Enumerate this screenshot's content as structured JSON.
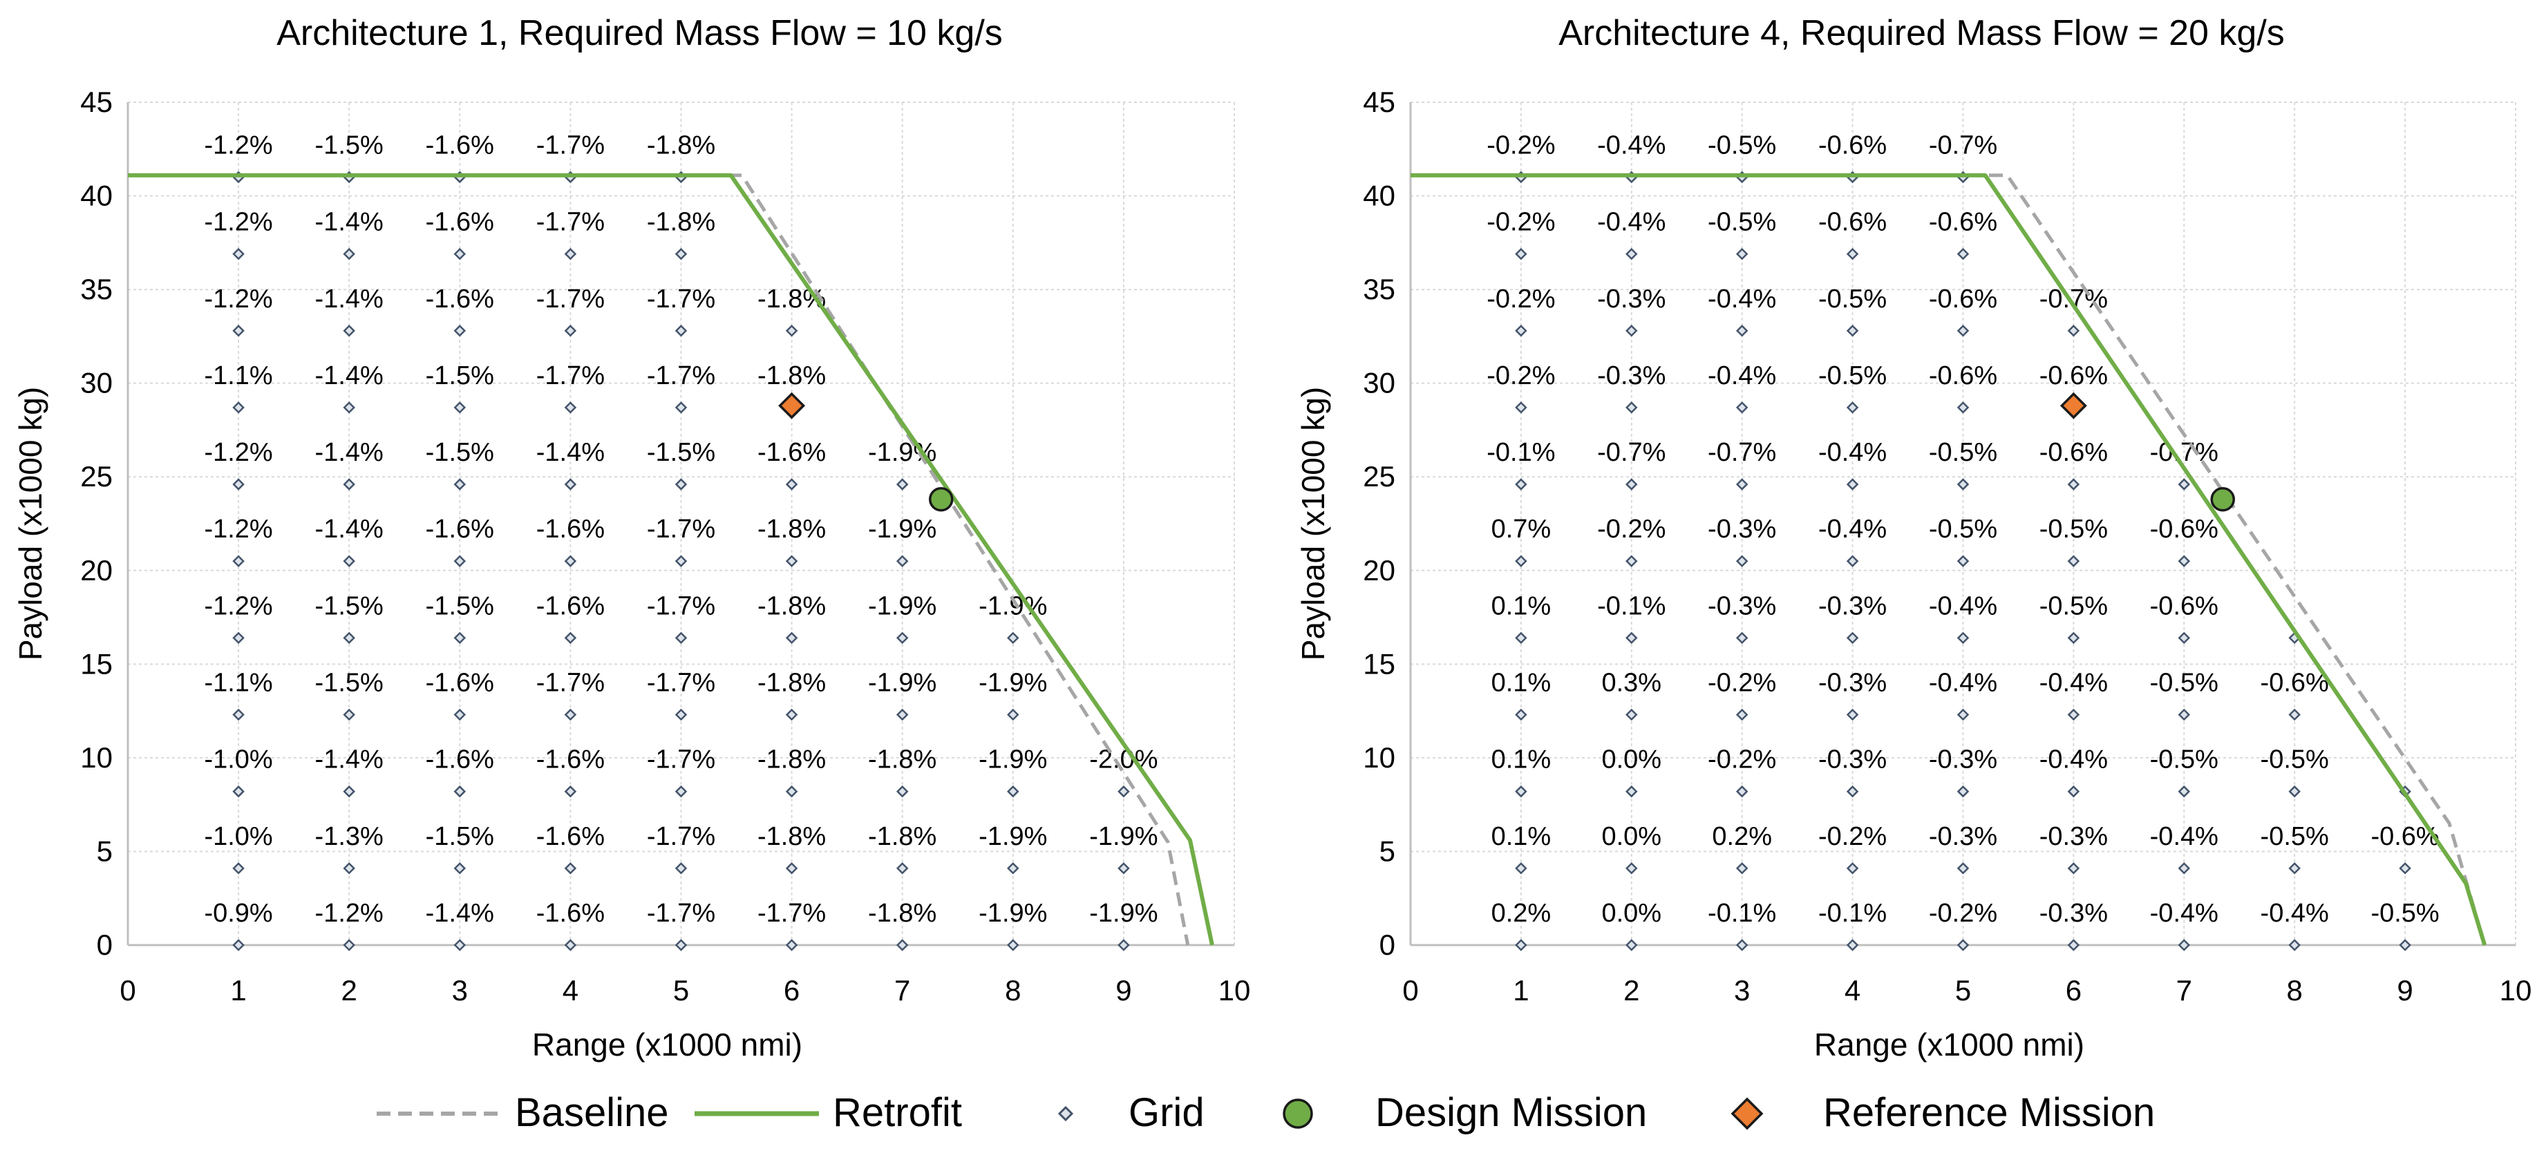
{
  "chart_data": [
    {
      "type": "scatter",
      "title": "Architecture 1, Required Mass Flow = 10 kg/s",
      "xlabel": "Range (x1000 nmi)",
      "ylabel": "Payload (x1000 kg)",
      "xlim": [
        0,
        10
      ],
      "ylim": [
        0,
        45
      ],
      "xticks": [
        "0",
        "1",
        "2",
        "3",
        "4",
        "5",
        "6",
        "7",
        "8",
        "9",
        "10"
      ],
      "yticks": [
        "0",
        "5",
        "10",
        "15",
        "20",
        "25",
        "30",
        "35",
        "40",
        "45"
      ],
      "grid": true,
      "series": [
        {
          "name": "Baseline",
          "style": "dashed-line",
          "color": "#a6a6a6",
          "x": [
            0,
            5.55,
            9.4,
            9.58
          ],
          "y": [
            41.1,
            41.1,
            5.5,
            0
          ]
        },
        {
          "name": "Retrofit",
          "style": "line",
          "color": "#70ad47",
          "x": [
            0,
            5.45,
            9.6,
            9.8
          ],
          "y": [
            41.1,
            41.1,
            5.6,
            0
          ]
        },
        {
          "name": "Design Mission",
          "style": "circle",
          "color": "#70ad47",
          "x": [
            7.35
          ],
          "y": [
            23.8
          ]
        },
        {
          "name": "Reference Mission",
          "style": "diamond",
          "color": "#ed7d31",
          "x": [
            6.0
          ],
          "y": [
            28.8
          ]
        }
      ],
      "grid_points": [
        {
          "x": 1,
          "y": 0,
          "label": "-0.9%"
        },
        {
          "x": 2,
          "y": 0,
          "label": "-1.2%"
        },
        {
          "x": 3,
          "y": 0,
          "label": "-1.4%"
        },
        {
          "x": 4,
          "y": 0,
          "label": "-1.6%"
        },
        {
          "x": 5,
          "y": 0,
          "label": "-1.7%"
        },
        {
          "x": 6,
          "y": 0,
          "label": "-1.7%"
        },
        {
          "x": 7,
          "y": 0,
          "label": "-1.8%"
        },
        {
          "x": 8,
          "y": 0,
          "label": "-1.9%"
        },
        {
          "x": 9,
          "y": 0,
          "label": "-1.9%"
        },
        {
          "x": 1,
          "y": 4.1,
          "label": "-1.0%"
        },
        {
          "x": 2,
          "y": 4.1,
          "label": "-1.3%"
        },
        {
          "x": 3,
          "y": 4.1,
          "label": "-1.5%"
        },
        {
          "x": 4,
          "y": 4.1,
          "label": "-1.6%"
        },
        {
          "x": 5,
          "y": 4.1,
          "label": "-1.7%"
        },
        {
          "x": 6,
          "y": 4.1,
          "label": "-1.8%"
        },
        {
          "x": 7,
          "y": 4.1,
          "label": "-1.8%"
        },
        {
          "x": 8,
          "y": 4.1,
          "label": "-1.9%"
        },
        {
          "x": 9,
          "y": 4.1,
          "label": "-1.9%"
        },
        {
          "x": 1,
          "y": 8.2,
          "label": "-1.0%"
        },
        {
          "x": 2,
          "y": 8.2,
          "label": "-1.4%"
        },
        {
          "x": 3,
          "y": 8.2,
          "label": "-1.6%"
        },
        {
          "x": 4,
          "y": 8.2,
          "label": "-1.6%"
        },
        {
          "x": 5,
          "y": 8.2,
          "label": "-1.7%"
        },
        {
          "x": 6,
          "y": 8.2,
          "label": "-1.8%"
        },
        {
          "x": 7,
          "y": 8.2,
          "label": "-1.8%"
        },
        {
          "x": 8,
          "y": 8.2,
          "label": "-1.9%"
        },
        {
          "x": 9,
          "y": 8.2,
          "label": "-2.0%"
        },
        {
          "x": 1,
          "y": 12.3,
          "label": "-1.1%"
        },
        {
          "x": 2,
          "y": 12.3,
          "label": "-1.5%"
        },
        {
          "x": 3,
          "y": 12.3,
          "label": "-1.6%"
        },
        {
          "x": 4,
          "y": 12.3,
          "label": "-1.7%"
        },
        {
          "x": 5,
          "y": 12.3,
          "label": "-1.7%"
        },
        {
          "x": 6,
          "y": 12.3,
          "label": "-1.8%"
        },
        {
          "x": 7,
          "y": 12.3,
          "label": "-1.9%"
        },
        {
          "x": 8,
          "y": 12.3,
          "label": "-1.9%"
        },
        {
          "x": 1,
          "y": 16.4,
          "label": "-1.2%"
        },
        {
          "x": 2,
          "y": 16.4,
          "label": "-1.5%"
        },
        {
          "x": 3,
          "y": 16.4,
          "label": "-1.5%"
        },
        {
          "x": 4,
          "y": 16.4,
          "label": "-1.6%"
        },
        {
          "x": 5,
          "y": 16.4,
          "label": "-1.7%"
        },
        {
          "x": 6,
          "y": 16.4,
          "label": "-1.8%"
        },
        {
          "x": 7,
          "y": 16.4,
          "label": "-1.9%"
        },
        {
          "x": 8,
          "y": 16.4,
          "label": "-1.9%"
        },
        {
          "x": 1,
          "y": 20.5,
          "label": "-1.2%"
        },
        {
          "x": 2,
          "y": 20.5,
          "label": "-1.4%"
        },
        {
          "x": 3,
          "y": 20.5,
          "label": "-1.6%"
        },
        {
          "x": 4,
          "y": 20.5,
          "label": "-1.6%"
        },
        {
          "x": 5,
          "y": 20.5,
          "label": "-1.7%"
        },
        {
          "x": 6,
          "y": 20.5,
          "label": "-1.8%"
        },
        {
          "x": 7,
          "y": 20.5,
          "label": "-1.9%"
        },
        {
          "x": 1,
          "y": 24.6,
          "label": "-1.2%"
        },
        {
          "x": 2,
          "y": 24.6,
          "label": "-1.4%"
        },
        {
          "x": 3,
          "y": 24.6,
          "label": "-1.5%"
        },
        {
          "x": 4,
          "y": 24.6,
          "label": "-1.4%"
        },
        {
          "x": 5,
          "y": 24.6,
          "label": "-1.5%"
        },
        {
          "x": 6,
          "y": 24.6,
          "label": "-1.6%"
        },
        {
          "x": 7,
          "y": 24.6,
          "label": "-1.9%"
        },
        {
          "x": 1,
          "y": 28.7,
          "label": "-1.1%"
        },
        {
          "x": 2,
          "y": 28.7,
          "label": "-1.4%"
        },
        {
          "x": 3,
          "y": 28.7,
          "label": "-1.5%"
        },
        {
          "x": 4,
          "y": 28.7,
          "label": "-1.7%"
        },
        {
          "x": 5,
          "y": 28.7,
          "label": "-1.7%"
        },
        {
          "x": 6,
          "y": 28.7,
          "label": "-1.8%"
        },
        {
          "x": 1,
          "y": 32.8,
          "label": "-1.2%"
        },
        {
          "x": 2,
          "y": 32.8,
          "label": "-1.4%"
        },
        {
          "x": 3,
          "y": 32.8,
          "label": "-1.6%"
        },
        {
          "x": 4,
          "y": 32.8,
          "label": "-1.7%"
        },
        {
          "x": 5,
          "y": 32.8,
          "label": "-1.7%"
        },
        {
          "x": 6,
          "y": 32.8,
          "label": "-1.8%"
        },
        {
          "x": 1,
          "y": 36.9,
          "label": "-1.2%"
        },
        {
          "x": 2,
          "y": 36.9,
          "label": "-1.4%"
        },
        {
          "x": 3,
          "y": 36.9,
          "label": "-1.6%"
        },
        {
          "x": 4,
          "y": 36.9,
          "label": "-1.7%"
        },
        {
          "x": 5,
          "y": 36.9,
          "label": "-1.8%"
        },
        {
          "x": 1,
          "y": 41.0,
          "label": "-1.2%"
        },
        {
          "x": 2,
          "y": 41.0,
          "label": "-1.5%"
        },
        {
          "x": 3,
          "y": 41.0,
          "label": "-1.6%"
        },
        {
          "x": 4,
          "y": 41.0,
          "label": "-1.7%"
        },
        {
          "x": 5,
          "y": 41.0,
          "label": "-1.8%"
        }
      ]
    },
    {
      "type": "scatter",
      "title": "Architecture 4, Required Mass Flow = 20 kg/s",
      "xlabel": "Range (x1000 nmi)",
      "ylabel": "Payload (x1000 kg)",
      "xlim": [
        0,
        10
      ],
      "ylim": [
        0,
        45
      ],
      "xticks": [
        "0",
        "1",
        "2",
        "3",
        "4",
        "5",
        "6",
        "7",
        "8",
        "9",
        "10"
      ],
      "yticks": [
        "0",
        "5",
        "10",
        "15",
        "20",
        "25",
        "30",
        "35",
        "40",
        "45"
      ],
      "grid": true,
      "series": [
        {
          "name": "Baseline",
          "style": "dashed-line",
          "color": "#a6a6a6",
          "x": [
            0,
            5.4,
            9.4,
            9.72
          ],
          "y": [
            41.1,
            41.1,
            6.5,
            0
          ]
        },
        {
          "name": "Retrofit",
          "style": "line",
          "color": "#70ad47",
          "x": [
            0,
            5.2,
            9.55,
            9.72
          ],
          "y": [
            41.1,
            41.1,
            3.3,
            0
          ]
        },
        {
          "name": "Design Mission",
          "style": "circle",
          "color": "#70ad47",
          "x": [
            7.35
          ],
          "y": [
            23.8
          ]
        },
        {
          "name": "Reference Mission",
          "style": "diamond",
          "color": "#ed7d31",
          "x": [
            6.0
          ],
          "y": [
            28.8
          ]
        }
      ],
      "grid_points": [
        {
          "x": 1,
          "y": 0,
          "label": "0.2%"
        },
        {
          "x": 2,
          "y": 0,
          "label": "0.0%"
        },
        {
          "x": 3,
          "y": 0,
          "label": "-0.1%"
        },
        {
          "x": 4,
          "y": 0,
          "label": "-0.1%"
        },
        {
          "x": 5,
          "y": 0,
          "label": "-0.2%"
        },
        {
          "x": 6,
          "y": 0,
          "label": "-0.3%"
        },
        {
          "x": 7,
          "y": 0,
          "label": "-0.4%"
        },
        {
          "x": 8,
          "y": 0,
          "label": "-0.4%"
        },
        {
          "x": 9,
          "y": 0,
          "label": "-0.5%"
        },
        {
          "x": 1,
          "y": 4.1,
          "label": "0.1%"
        },
        {
          "x": 2,
          "y": 4.1,
          "label": "0.0%"
        },
        {
          "x": 3,
          "y": 4.1,
          "label": "0.2%"
        },
        {
          "x": 4,
          "y": 4.1,
          "label": "-0.2%"
        },
        {
          "x": 5,
          "y": 4.1,
          "label": "-0.3%"
        },
        {
          "x": 6,
          "y": 4.1,
          "label": "-0.3%"
        },
        {
          "x": 7,
          "y": 4.1,
          "label": "-0.4%"
        },
        {
          "x": 8,
          "y": 4.1,
          "label": "-0.5%"
        },
        {
          "x": 9,
          "y": 4.1,
          "label": "-0.6%"
        },
        {
          "x": 1,
          "y": 8.2,
          "label": "0.1%"
        },
        {
          "x": 2,
          "y": 8.2,
          "label": "0.0%"
        },
        {
          "x": 3,
          "y": 8.2,
          "label": "-0.2%"
        },
        {
          "x": 4,
          "y": 8.2,
          "label": "-0.3%"
        },
        {
          "x": 5,
          "y": 8.2,
          "label": "-0.3%"
        },
        {
          "x": 6,
          "y": 8.2,
          "label": "-0.4%"
        },
        {
          "x": 7,
          "y": 8.2,
          "label": "-0.5%"
        },
        {
          "x": 8,
          "y": 8.2,
          "label": "-0.5%"
        },
        {
          "x": 9,
          "y": 8.2,
          "label": ""
        },
        {
          "x": 1,
          "y": 12.3,
          "label": "0.1%"
        },
        {
          "x": 2,
          "y": 12.3,
          "label": "0.3%"
        },
        {
          "x": 3,
          "y": 12.3,
          "label": "-0.2%"
        },
        {
          "x": 4,
          "y": 12.3,
          "label": "-0.3%"
        },
        {
          "x": 5,
          "y": 12.3,
          "label": "-0.4%"
        },
        {
          "x": 6,
          "y": 12.3,
          "label": "-0.4%"
        },
        {
          "x": 7,
          "y": 12.3,
          "label": "-0.5%"
        },
        {
          "x": 8,
          "y": 12.3,
          "label": "-0.6%"
        },
        {
          "x": 1,
          "y": 16.4,
          "label": "0.1%"
        },
        {
          "x": 2,
          "y": 16.4,
          "label": "-0.1%"
        },
        {
          "x": 3,
          "y": 16.4,
          "label": "-0.3%"
        },
        {
          "x": 4,
          "y": 16.4,
          "label": "-0.3%"
        },
        {
          "x": 5,
          "y": 16.4,
          "label": "-0.4%"
        },
        {
          "x": 6,
          "y": 16.4,
          "label": "-0.5%"
        },
        {
          "x": 7,
          "y": 16.4,
          "label": "-0.6%"
        },
        {
          "x": 8,
          "y": 16.4,
          "label": ""
        },
        {
          "x": 1,
          "y": 20.5,
          "label": "0.7%"
        },
        {
          "x": 2,
          "y": 20.5,
          "label": "-0.2%"
        },
        {
          "x": 3,
          "y": 20.5,
          "label": "-0.3%"
        },
        {
          "x": 4,
          "y": 20.5,
          "label": "-0.4%"
        },
        {
          "x": 5,
          "y": 20.5,
          "label": "-0.5%"
        },
        {
          "x": 6,
          "y": 20.5,
          "label": "-0.5%"
        },
        {
          "x": 7,
          "y": 20.5,
          "label": "-0.6%"
        },
        {
          "x": 1,
          "y": 24.6,
          "label": "-0.1%"
        },
        {
          "x": 2,
          "y": 24.6,
          "label": "-0.7%"
        },
        {
          "x": 3,
          "y": 24.6,
          "label": "-0.7%"
        },
        {
          "x": 4,
          "y": 24.6,
          "label": "-0.4%"
        },
        {
          "x": 5,
          "y": 24.6,
          "label": "-0.5%"
        },
        {
          "x": 6,
          "y": 24.6,
          "label": "-0.6%"
        },
        {
          "x": 7,
          "y": 24.6,
          "label": "-0.7%"
        },
        {
          "x": 1,
          "y": 28.7,
          "label": "-0.2%"
        },
        {
          "x": 2,
          "y": 28.7,
          "label": "-0.3%"
        },
        {
          "x": 3,
          "y": 28.7,
          "label": "-0.4%"
        },
        {
          "x": 4,
          "y": 28.7,
          "label": "-0.5%"
        },
        {
          "x": 5,
          "y": 28.7,
          "label": "-0.6%"
        },
        {
          "x": 6,
          "y": 28.7,
          "label": "-0.6%"
        },
        {
          "x": 1,
          "y": 32.8,
          "label": "-0.2%"
        },
        {
          "x": 2,
          "y": 32.8,
          "label": "-0.3%"
        },
        {
          "x": 3,
          "y": 32.8,
          "label": "-0.4%"
        },
        {
          "x": 4,
          "y": 32.8,
          "label": "-0.5%"
        },
        {
          "x": 5,
          "y": 32.8,
          "label": "-0.6%"
        },
        {
          "x": 6,
          "y": 32.8,
          "label": "-0.7%"
        },
        {
          "x": 1,
          "y": 36.9,
          "label": "-0.2%"
        },
        {
          "x": 2,
          "y": 36.9,
          "label": "-0.4%"
        },
        {
          "x": 3,
          "y": 36.9,
          "label": "-0.5%"
        },
        {
          "x": 4,
          "y": 36.9,
          "label": "-0.6%"
        },
        {
          "x": 5,
          "y": 36.9,
          "label": "-0.6%"
        },
        {
          "x": 1,
          "y": 41.0,
          "label": "-0.2%"
        },
        {
          "x": 2,
          "y": 41.0,
          "label": "-0.4%"
        },
        {
          "x": 3,
          "y": 41.0,
          "label": "-0.5%"
        },
        {
          "x": 4,
          "y": 41.0,
          "label": "-0.6%"
        },
        {
          "x": 5,
          "y": 41.0,
          "label": "-0.7%"
        }
      ]
    }
  ],
  "legend": {
    "placement": "bottom",
    "items": [
      {
        "label": "Baseline",
        "marker": "dashed-line",
        "color": "#a6a6a6"
      },
      {
        "label": "Retrofit",
        "marker": "line",
        "color": "#70ad47"
      },
      {
        "label": "Grid",
        "marker": "small-diamond",
        "color": "#8497b0"
      },
      {
        "label": "Design Mission",
        "marker": "circle",
        "color": "#70ad47"
      },
      {
        "label": "Reference Mission",
        "marker": "diamond",
        "color": "#ed7d31"
      }
    ]
  }
}
